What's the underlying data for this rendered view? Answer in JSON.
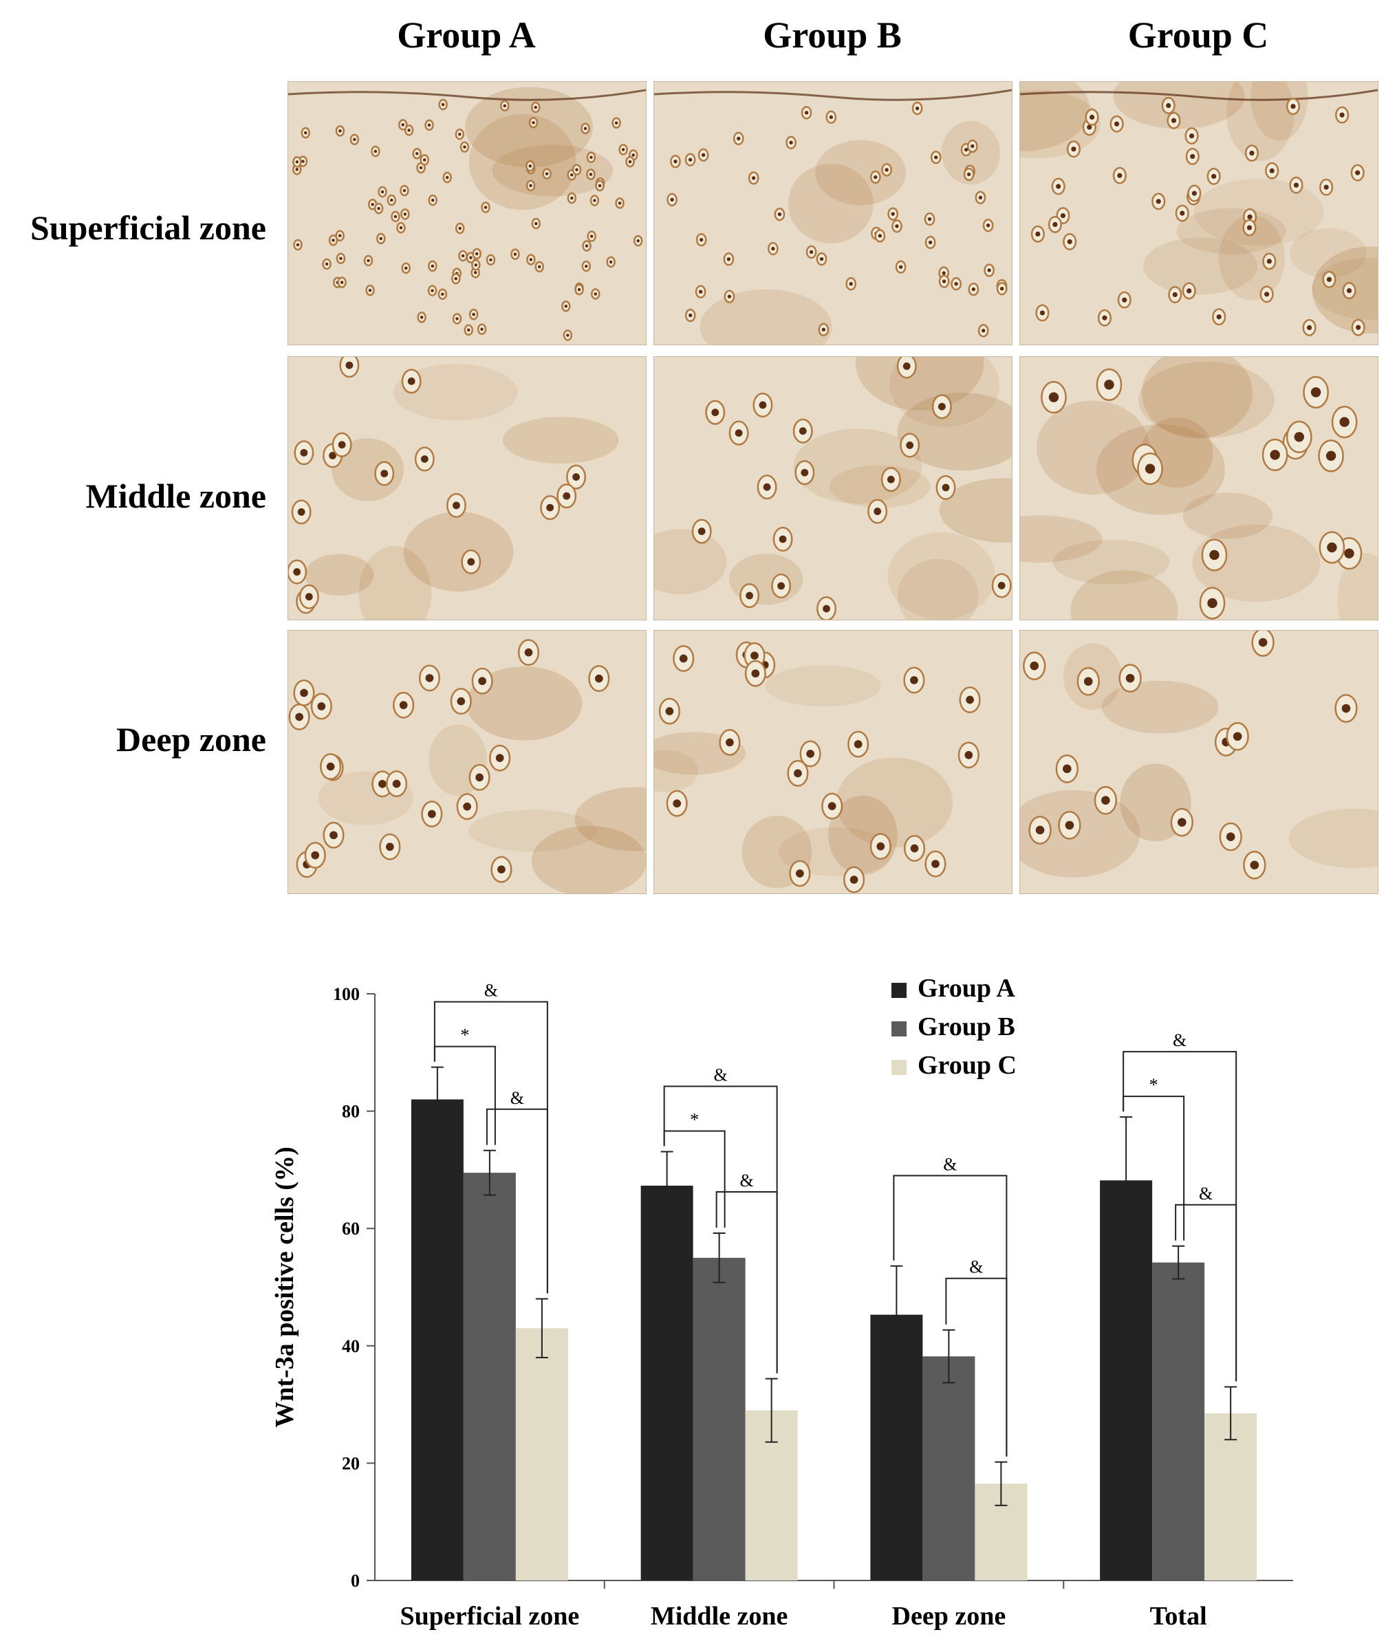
{
  "figure": {
    "column_headers": [
      "Group A",
      "Group B",
      "Group C"
    ],
    "row_headers": [
      "Superficial zone",
      "Middle zone",
      "Deep zone"
    ],
    "panel_colors": {
      "background": "#e8dcc8",
      "stain": "#b07a44",
      "nucleus": "#5a2e12"
    }
  },
  "chart_data": {
    "type": "bar",
    "categories": [
      "Superficial zone",
      "Middle zone",
      "Deep zone",
      "Total"
    ],
    "series": [
      {
        "name": "Group A",
        "color": "#232323",
        "values": [
          82,
          67.3,
          45.3,
          68.2
        ],
        "errors": [
          5.5,
          5.8,
          8.3,
          10.8
        ]
      },
      {
        "name": "Group B",
        "color": "#5b5b5b",
        "values": [
          69.5,
          55,
          38.2,
          54.2
        ],
        "errors": [
          3.8,
          4.2,
          4.5,
          2.8
        ]
      },
      {
        "name": "Group C",
        "color": "#e0dcc6",
        "values": [
          43,
          29,
          16.5,
          28.5
        ],
        "errors": [
          5,
          5.4,
          3.7,
          4.5
        ]
      }
    ],
    "ylabel": "Wnt-3a positive cells (%)",
    "ylim": [
      0,
      100
    ],
    "yticks": [
      0,
      20,
      40,
      60,
      80,
      100
    ],
    "legend_position": "top-center",
    "annotations": [
      {
        "category": "Superficial zone",
        "from": "Group A",
        "to": "Group C",
        "label": "&"
      },
      {
        "category": "Superficial zone",
        "from": "Group A",
        "to": "Group B",
        "label": "*"
      },
      {
        "category": "Superficial zone",
        "from": "Group B",
        "to": "Group C",
        "label": "&"
      },
      {
        "category": "Middle zone",
        "from": "Group A",
        "to": "Group C",
        "label": "&"
      },
      {
        "category": "Middle zone",
        "from": "Group A",
        "to": "Group B",
        "label": "*"
      },
      {
        "category": "Middle zone",
        "from": "Group B",
        "to": "Group C",
        "label": "&"
      },
      {
        "category": "Deep zone",
        "from": "Group A",
        "to": "Group C",
        "label": "&"
      },
      {
        "category": "Deep zone",
        "from": "Group B",
        "to": "Group C",
        "label": "&"
      },
      {
        "category": "Total",
        "from": "Group A",
        "to": "Group C",
        "label": "&"
      },
      {
        "category": "Total",
        "from": "Group A",
        "to": "Group B",
        "label": "*"
      },
      {
        "category": "Total",
        "from": "Group B",
        "to": "Group C",
        "label": "&"
      }
    ]
  }
}
